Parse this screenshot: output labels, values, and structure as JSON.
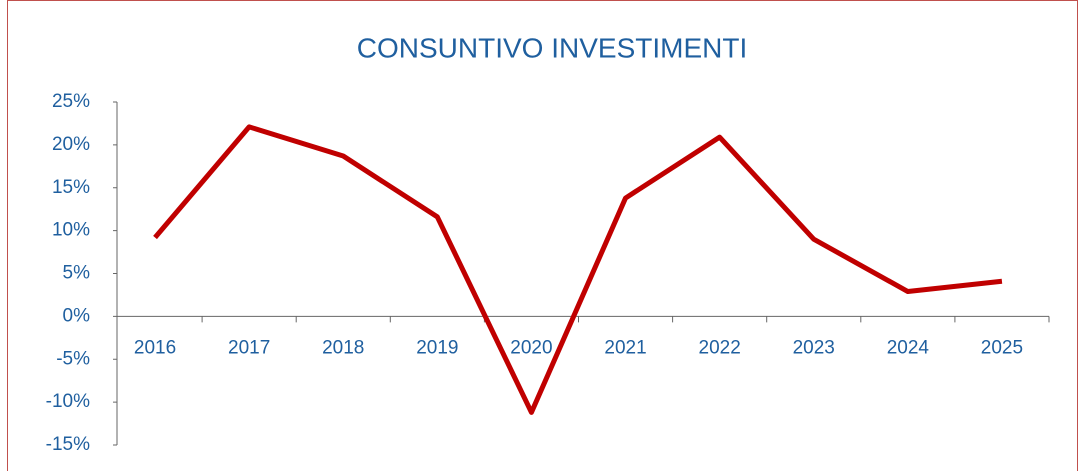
{
  "chart_data": {
    "type": "line",
    "title": "CONSUNTIVO INVESTIMENTI",
    "categories": [
      "2016",
      "2017",
      "2018",
      "2019",
      "2020",
      "2021",
      "2022",
      "2023",
      "2024",
      "2025"
    ],
    "values": [
      9.2,
      22.1,
      18.7,
      11.6,
      -11.2,
      13.8,
      20.9,
      9.0,
      2.9,
      4.1
    ],
    "color": "#c00000",
    "ylim": [
      -15,
      25
    ],
    "yticks": [
      {
        "value": -15,
        "label": "-15%"
      },
      {
        "value": -10,
        "label": "-10%"
      },
      {
        "value": -5,
        "label": "-5%"
      },
      {
        "value": 0,
        "label": "0%"
      },
      {
        "value": 5,
        "label": "5%"
      },
      {
        "value": 10,
        "label": "10%"
      },
      {
        "value": 15,
        "label": "15%"
      },
      {
        "value": 20,
        "label": "20%"
      },
      {
        "value": 25,
        "label": "25%"
      }
    ],
    "grid": false
  }
}
